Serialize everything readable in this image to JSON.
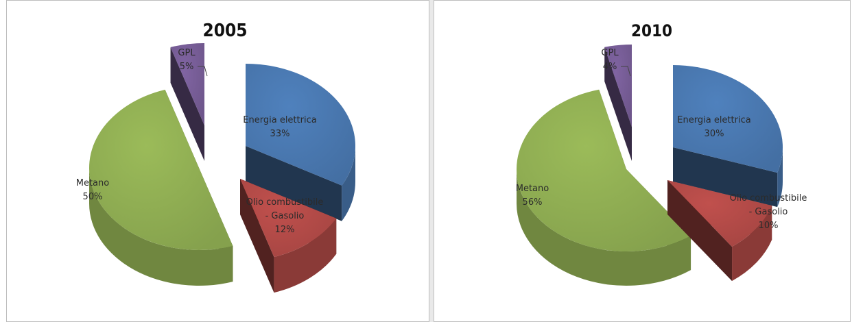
{
  "chart_data": [
    {
      "type": "pie",
      "title": "2005",
      "slices": [
        {
          "name": "Energia elettrica",
          "value": 33,
          "label": "33%",
          "color": "#4f81bd"
        },
        {
          "name": "Olio combustibile - Gasolio",
          "value": 12,
          "label": "12%",
          "color": "#c0504d"
        },
        {
          "name": "Metano",
          "value": 50,
          "label": "50%",
          "color": "#9bbb59"
        },
        {
          "name": "GPL",
          "value": 5,
          "label": "5%",
          "color": "#8064a2"
        }
      ]
    },
    {
      "type": "pie",
      "title": "2010",
      "slices": [
        {
          "name": "Energia elettrica",
          "value": 30,
          "label": "30%",
          "color": "#4f81bd"
        },
        {
          "name": "Olio combustibile - Gasolio",
          "value": 10,
          "label": "10%",
          "color": "#c0504d"
        },
        {
          "name": "Metano",
          "value": 56,
          "label": "56%",
          "color": "#9bbb59"
        },
        {
          "name": "GPL",
          "value": 4,
          "label": "4%",
          "color": "#8064a2"
        }
      ]
    }
  ]
}
